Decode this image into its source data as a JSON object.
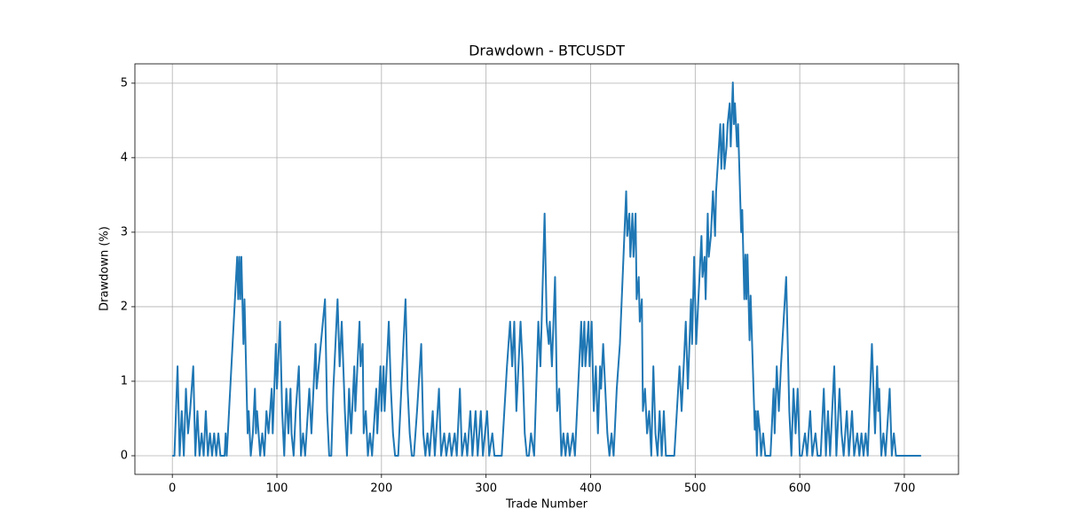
{
  "chart_data": {
    "type": "line",
    "title": "Drawdown - BTCUSDT",
    "x_label": "Trade Number",
    "y_label": "Drawdown (%)",
    "x": [
      0,
      2,
      5,
      7,
      9,
      11,
      13,
      15,
      17,
      20,
      22,
      24,
      26,
      28,
      30,
      32,
      34,
      36,
      38,
      40,
      42,
      44,
      46,
      50,
      51,
      52,
      62,
      63,
      64,
      65,
      66,
      68,
      69,
      72,
      73,
      75,
      77,
      79,
      80,
      81,
      84,
      86,
      88,
      90,
      92,
      95,
      96,
      99,
      100,
      103,
      105,
      107,
      109,
      111,
      113,
      114,
      116,
      118,
      121,
      123,
      125,
      127,
      131,
      133,
      137,
      138,
      146,
      148,
      150,
      152,
      154,
      158,
      160,
      162,
      165,
      167,
      169,
      171,
      174,
      175,
      179,
      180,
      182,
      183,
      185,
      187,
      189,
      191,
      195,
      196,
      199,
      200,
      202,
      203,
      207,
      209,
      211,
      213,
      216,
      223,
      225,
      227,
      229,
      231,
      234,
      238,
      240,
      242,
      244,
      246,
      249,
      251,
      255,
      257,
      260,
      262,
      265,
      267,
      270,
      272,
      275,
      277,
      280,
      282,
      285,
      287,
      290,
      292,
      295,
      297,
      301,
      303,
      306,
      308,
      315,
      320,
      323,
      325,
      327,
      329,
      333,
      335,
      337,
      339,
      341,
      343,
      346,
      350,
      352,
      356,
      358,
      360,
      361,
      363,
      366,
      368,
      370,
      372,
      374,
      376,
      378,
      380,
      383,
      385,
      391,
      392,
      394,
      395,
      398,
      399,
      401,
      403,
      405,
      407,
      409,
      410,
      412,
      414,
      416,
      418,
      420,
      422,
      425,
      428,
      434,
      435,
      437,
      438,
      440,
      441,
      443,
      444,
      446,
      447,
      449,
      450,
      452,
      454,
      456,
      458,
      460,
      462,
      464,
      466,
      468,
      470,
      472,
      475,
      480,
      485,
      487,
      491,
      493,
      496,
      497,
      499,
      501,
      506,
      507,
      509,
      510,
      512,
      513,
      515,
      517,
      519,
      520,
      524,
      525,
      527,
      528,
      530,
      531,
      533,
      534,
      536,
      537,
      538,
      540,
      541,
      544,
      545,
      547,
      548,
      549,
      550,
      552,
      553,
      557,
      558,
      559,
      560,
      562,
      563,
      565,
      567,
      572,
      575,
      576,
      578,
      580,
      582,
      587,
      590,
      592,
      594,
      596,
      598,
      600,
      602,
      605,
      607,
      610,
      612,
      615,
      617,
      620,
      623,
      625,
      627,
      629,
      633,
      635,
      638,
      640,
      642,
      645,
      647,
      650,
      652,
      655,
      657,
      659,
      661,
      663,
      665,
      669,
      672,
      674,
      675,
      676,
      678,
      680,
      682,
      686,
      688,
      690,
      692,
      696,
      716
    ],
    "values": [
      0,
      0,
      1.2,
      0,
      0.6,
      0,
      0.9,
      0.3,
      0.6,
      1.2,
      0,
      0.6,
      0,
      0.3,
      0,
      0.6,
      0,
      0.3,
      0,
      0.3,
      0,
      0.3,
      0,
      0,
      0.3,
      0,
      2.67,
      2.1,
      2.67,
      2.1,
      2.67,
      1.5,
      2.1,
      0.3,
      0.6,
      0,
      0.3,
      0.9,
      0.3,
      0.6,
      0,
      0.3,
      0,
      0.6,
      0.3,
      0.9,
      0.3,
      1.5,
      0.9,
      1.8,
      0.6,
      0,
      0.9,
      0.3,
      0.9,
      0.3,
      0,
      0.6,
      1.2,
      0,
      0.3,
      0,
      0.9,
      0.3,
      1.5,
      0.9,
      2.1,
      0.6,
      0,
      0,
      0.9,
      2.1,
      1.2,
      1.8,
      0.6,
      0,
      0.9,
      0.3,
      1.2,
      0.6,
      1.8,
      1.2,
      1.5,
      0.3,
      0.6,
      0,
      0.3,
      0,
      0.9,
      0.3,
      1.2,
      0.6,
      1.2,
      0.6,
      1.8,
      0.9,
      0.3,
      0,
      0,
      2.1,
      0.9,
      0.3,
      0,
      0,
      0.6,
      1.5,
      0.3,
      0,
      0.3,
      0,
      0.6,
      0,
      0.9,
      0,
      0.3,
      0,
      0.3,
      0,
      0.3,
      0,
      0.9,
      0,
      0.3,
      0,
      0.6,
      0,
      0.6,
      0,
      0.6,
      0,
      0.6,
      0,
      0.3,
      0,
      0,
      1.2,
      1.8,
      1.2,
      1.8,
      0.6,
      1.8,
      1.2,
      0.3,
      0,
      0,
      0.3,
      0,
      1.8,
      1.2,
      3.25,
      1.8,
      1.5,
      1.8,
      1.2,
      2.4,
      0.6,
      0.9,
      0,
      0.3,
      0,
      0.3,
      0,
      0.3,
      0,
      1.8,
      1.2,
      1.8,
      1.2,
      1.8,
      1.2,
      1.8,
      0.6,
      1.2,
      0.3,
      1.2,
      0.9,
      1.5,
      0.9,
      0.3,
      0,
      0.3,
      0,
      0.9,
      1.5,
      3.55,
      2.95,
      3.25,
      2.67,
      3.25,
      2.67,
      3.25,
      2.1,
      2.4,
      1.8,
      2.1,
      0.6,
      0.9,
      0.3,
      0.6,
      0,
      1.2,
      0.3,
      0,
      0.6,
      0,
      0.6,
      0,
      0,
      0,
      1.2,
      0.6,
      1.8,
      0.9,
      2.1,
      1.5,
      2.67,
      1.5,
      2.95,
      2.4,
      2.67,
      2.1,
      3.25,
      2.67,
      2.95,
      3.55,
      2.95,
      3.55,
      4.45,
      3.85,
      4.45,
      3.85,
      4.15,
      4.45,
      4.73,
      4.15,
      5.01,
      4.45,
      4.73,
      4.15,
      4.45,
      3.0,
      3.3,
      2.1,
      2.7,
      2.1,
      2.7,
      1.55,
      2.15,
      0.35,
      0.6,
      0,
      0.6,
      0.3,
      0,
      0.3,
      0,
      0,
      0.9,
      0.3,
      1.2,
      0.6,
      1.2,
      2.4,
      0.6,
      0,
      0.9,
      0.3,
      0.9,
      0,
      0,
      0.3,
      0,
      0.6,
      0,
      0.3,
      0,
      0,
      0.9,
      0,
      0.6,
      0,
      1.2,
      0,
      0.9,
      0.3,
      0,
      0.6,
      0,
      0.6,
      0,
      0.3,
      0,
      0.3,
      0,
      0.3,
      0,
      1.5,
      0.3,
      1.2,
      0.6,
      0.9,
      0,
      0.3,
      0,
      0.9,
      0,
      0.3,
      0,
      0,
      0
    ],
    "color": "#1f77b4",
    "xlim": [
      -35.8,
      751.8
    ],
    "xticks": [
      0,
      100,
      200,
      300,
      400,
      500,
      600,
      700
    ],
    "ylim": [
      -0.25,
      5.26
    ],
    "yticks": [
      0,
      1,
      2,
      3,
      4,
      5
    ],
    "grid": true
  }
}
